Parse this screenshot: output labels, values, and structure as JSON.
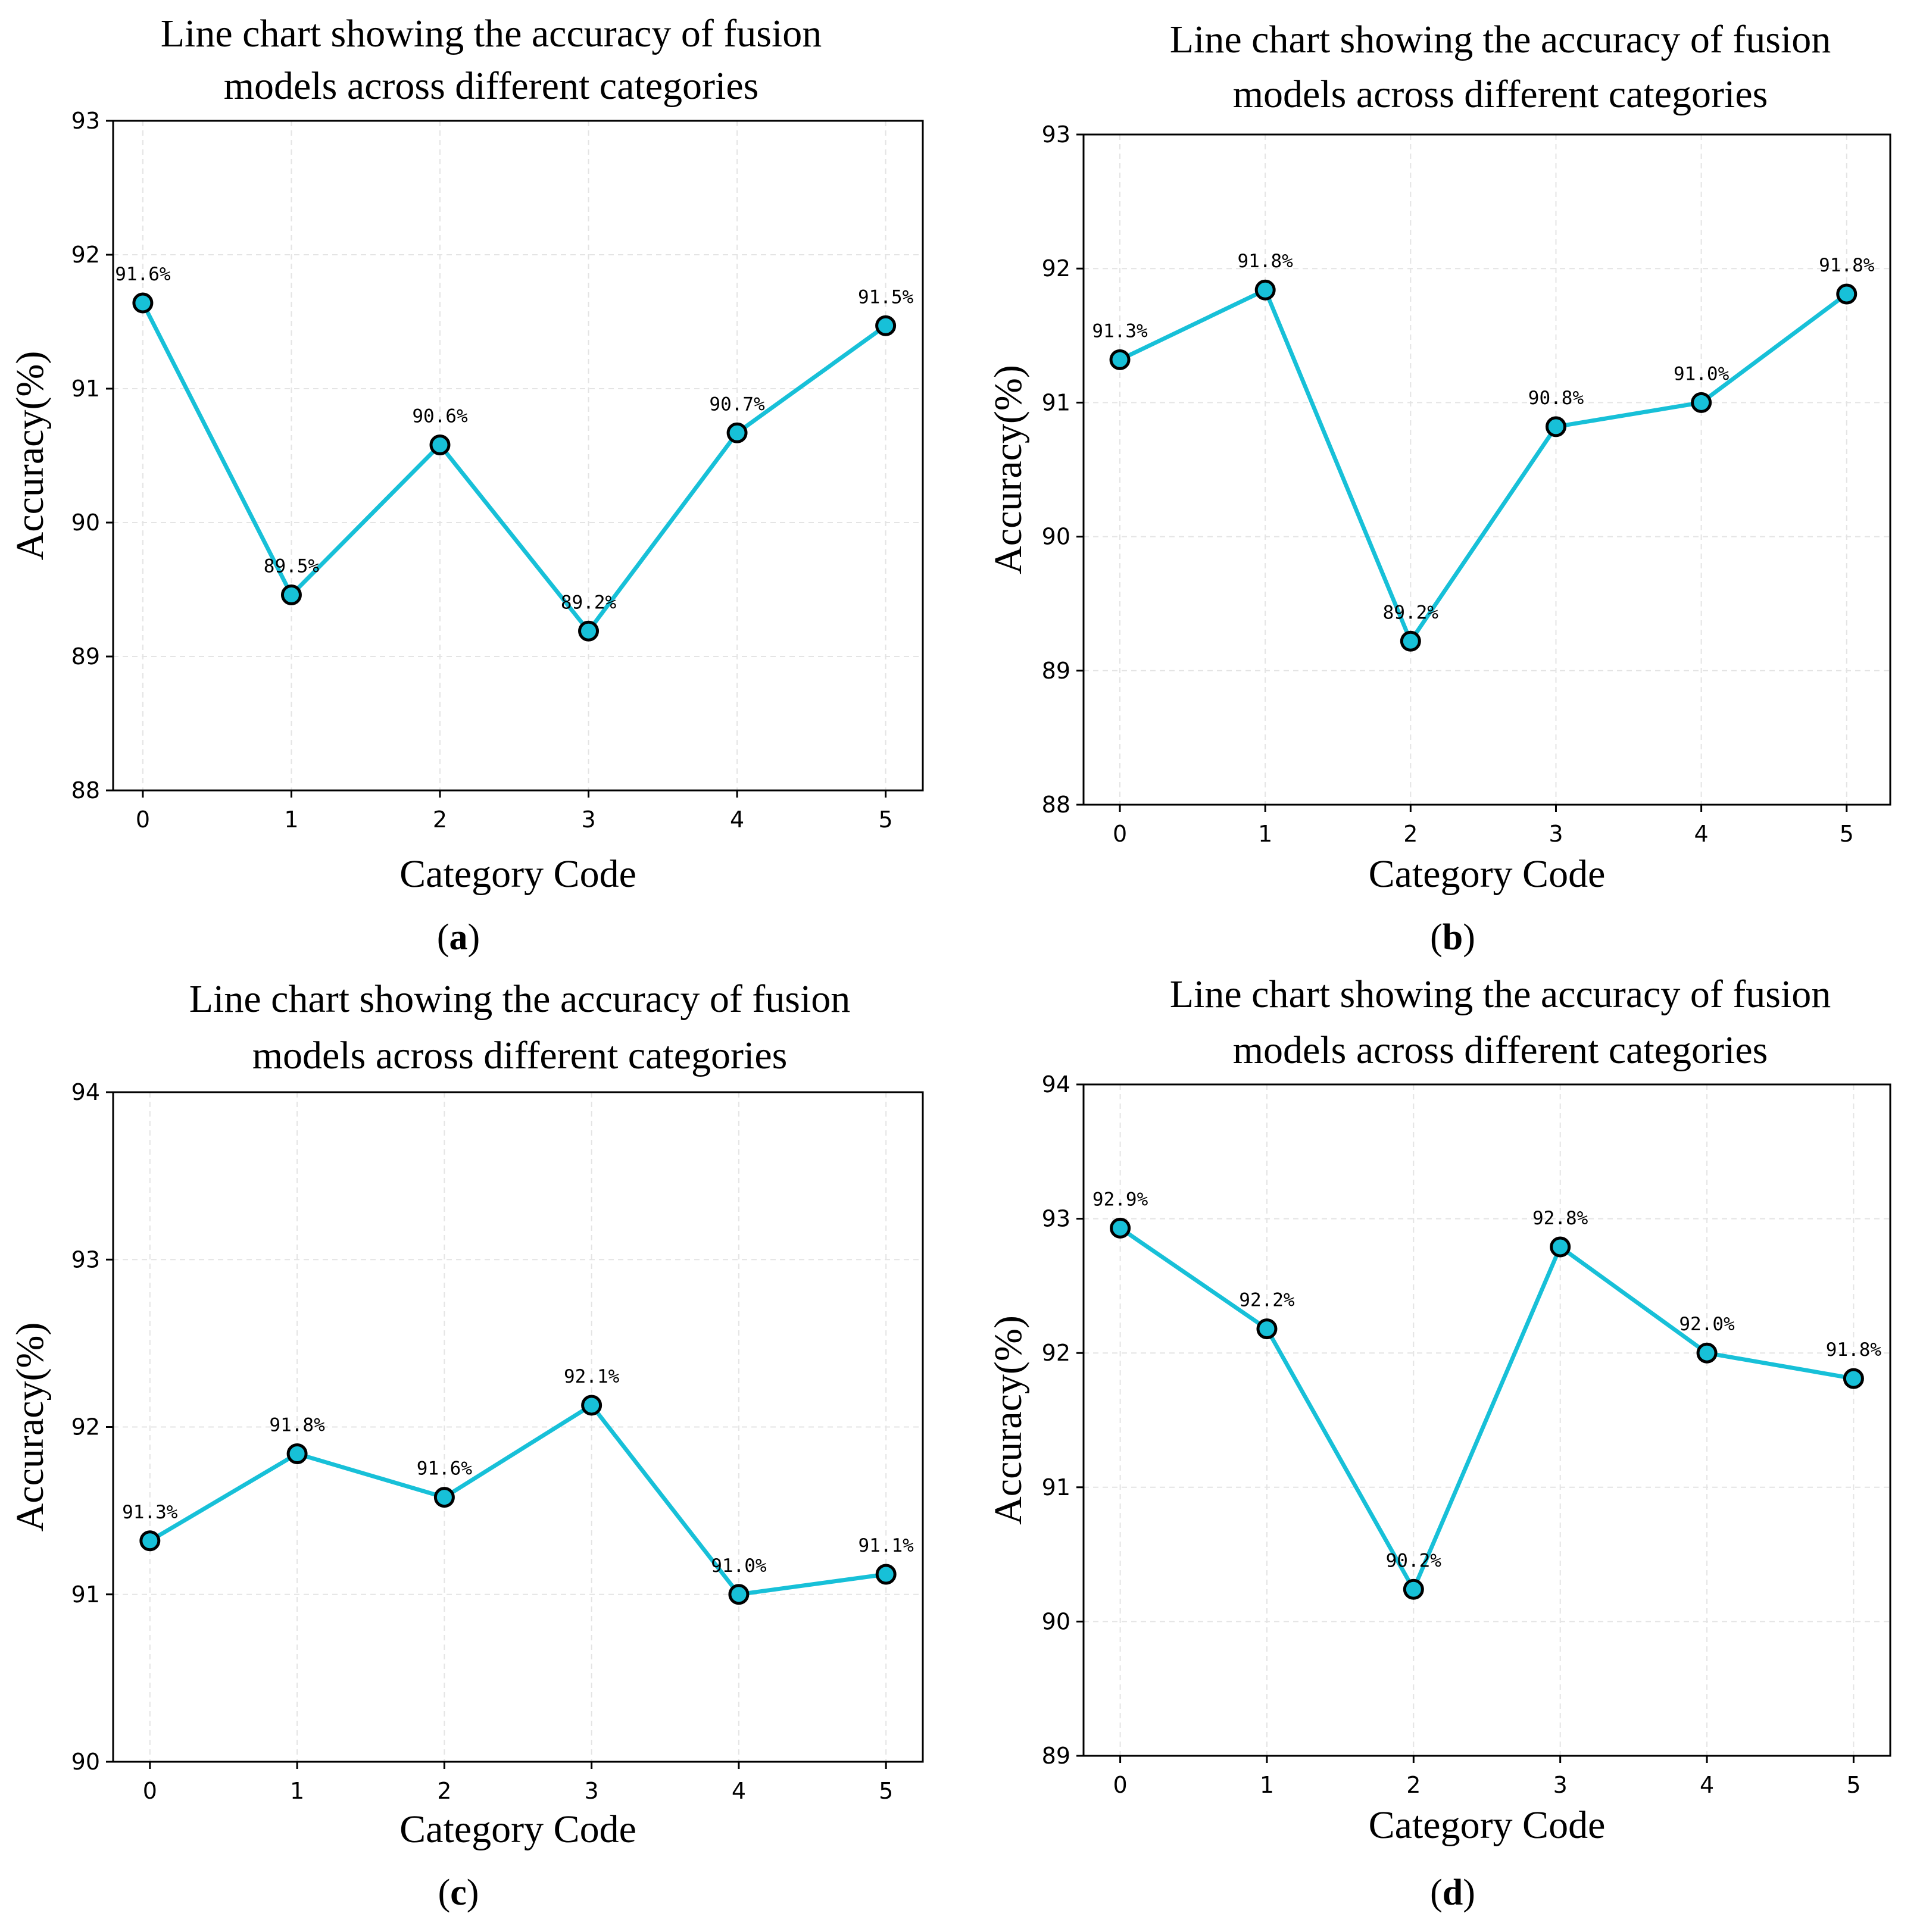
{
  "colors": {
    "line": "#17c0d8",
    "marker_fill": "#17c0d8",
    "marker_edge": "#000000",
    "grid": "#e4e4e4"
  },
  "chart_data": [
    {
      "type": "line",
      "panel": "a",
      "title": [
        "Line chart showing the accuracy of fusion",
        "models across different categories"
      ],
      "xlabel": "Category Code",
      "ylabel": "Accuracy(%)",
      "x": [
        0,
        1,
        2,
        3,
        4,
        5
      ],
      "values": [
        91.64,
        89.46,
        90.58,
        89.19,
        90.67,
        91.47
      ],
      "data_labels": [
        "91.6%",
        "89.5%",
        "90.6%",
        "89.2%",
        "90.7%",
        "91.5%"
      ],
      "ylim": [
        88,
        93
      ],
      "yticks": [
        88,
        89,
        90,
        91,
        92,
        93
      ],
      "xlim": [
        -0.2,
        5.25
      ],
      "grid": true
    },
    {
      "type": "line",
      "panel": "b",
      "title": [
        "Line chart showing the accuracy of fusion",
        "models across different categories"
      ],
      "xlabel": "Category Code",
      "ylabel": "Accuracy(%)",
      "x": [
        0,
        1,
        2,
        3,
        4,
        5
      ],
      "values": [
        91.32,
        91.84,
        89.22,
        90.82,
        91.0,
        91.81
      ],
      "data_labels": [
        "91.3%",
        "91.8%",
        "89.2%",
        "90.8%",
        "91.0%",
        "91.8%"
      ],
      "ylim": [
        88,
        93
      ],
      "yticks": [
        88,
        89,
        90,
        91,
        92,
        93
      ],
      "xlim": [
        -0.25,
        5.3
      ],
      "grid": true
    },
    {
      "type": "line",
      "panel": "c",
      "title": [
        "Line chart showing the accuracy of fusion",
        "models across different categories"
      ],
      "xlabel": "Category Code",
      "ylabel": "Accuracy(%)",
      "x": [
        0,
        1,
        2,
        3,
        4,
        5
      ],
      "values": [
        91.32,
        91.84,
        91.58,
        92.13,
        91.0,
        91.12
      ],
      "data_labels": [
        "91.3%",
        "91.8%",
        "91.6%",
        "92.1%",
        "91.0%",
        "91.1%"
      ],
      "ylim": [
        90,
        94
      ],
      "yticks": [
        90,
        91,
        92,
        93,
        94
      ],
      "xlim": [
        -0.25,
        5.25
      ],
      "grid": true
    },
    {
      "type": "line",
      "panel": "d",
      "title": [
        "Line chart showing the accuracy of fusion",
        "models across different categories"
      ],
      "xlabel": "Category Code",
      "ylabel": "Accuracy(%)",
      "x": [
        0,
        1,
        2,
        3,
        4,
        5
      ],
      "values": [
        92.93,
        92.18,
        90.24,
        92.79,
        92.0,
        91.81
      ],
      "data_labels": [
        "92.9%",
        "92.2%",
        "90.2%",
        "92.8%",
        "92.0%",
        "91.8%"
      ],
      "ylim": [
        89,
        94
      ],
      "yticks": [
        89,
        90,
        91,
        92,
        93,
        94
      ],
      "xlim": [
        -0.25,
        5.25
      ],
      "grid": true
    }
  ],
  "captions": [
    {
      "open": "(",
      "letter": "a",
      "close": ")"
    },
    {
      "open": "(",
      "letter": "b",
      "close": ")"
    },
    {
      "open": "(",
      "letter": "c",
      "close": ")"
    },
    {
      "open": "(",
      "letter": "d",
      "close": ")"
    }
  ]
}
